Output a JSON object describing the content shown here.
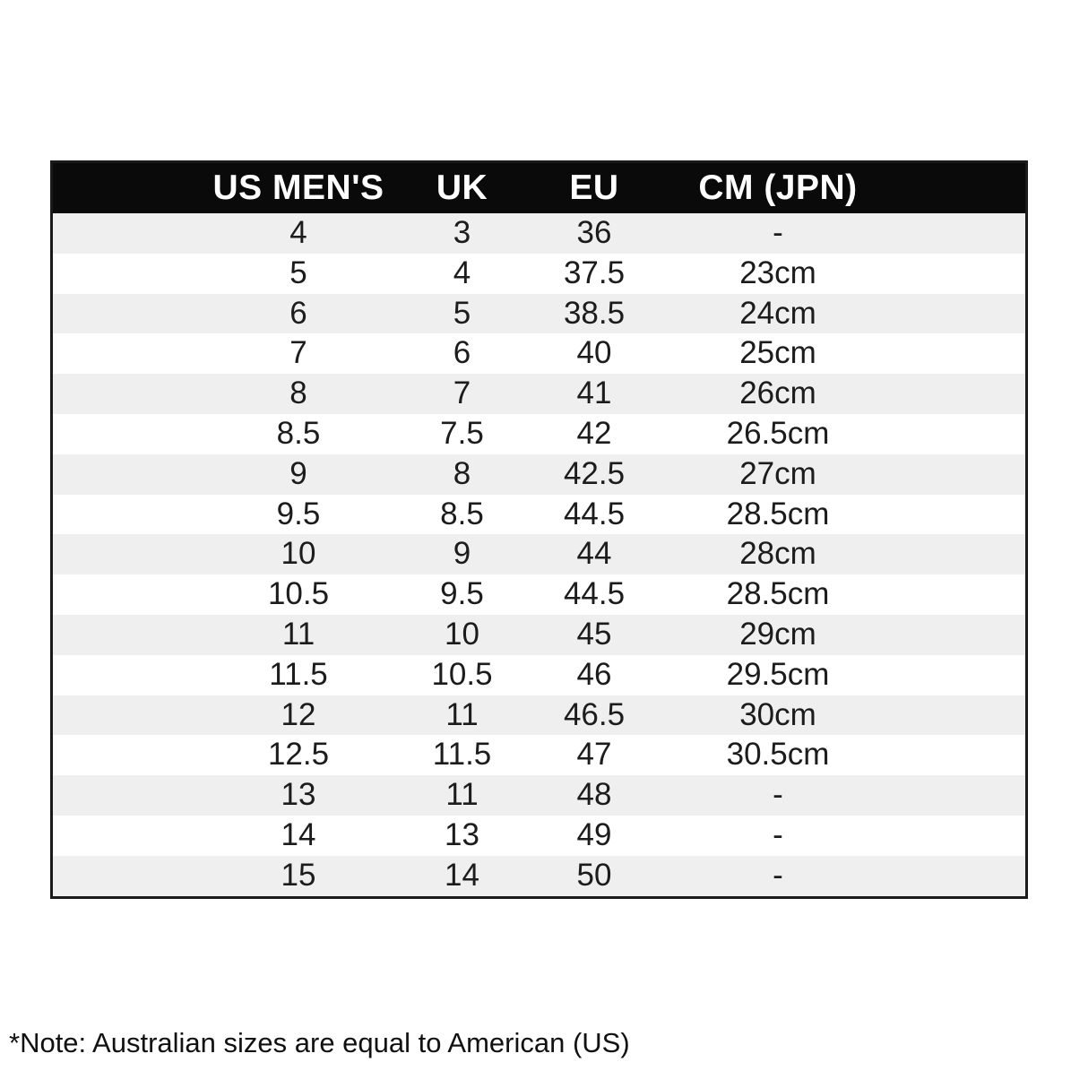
{
  "chart_data": {
    "type": "table",
    "columns": [
      "US MEN'S",
      "UK",
      "EU",
      "CM (JPN)"
    ],
    "rows": [
      [
        "4",
        "3",
        "36",
        "-"
      ],
      [
        "5",
        "4",
        "37.5",
        "23cm"
      ],
      [
        "6",
        "5",
        "38.5",
        "24cm"
      ],
      [
        "7",
        "6",
        "40",
        "25cm"
      ],
      [
        "8",
        "7",
        "41",
        "26cm"
      ],
      [
        "8.5",
        "7.5",
        "42",
        "26.5cm"
      ],
      [
        "9",
        "8",
        "42.5",
        "27cm"
      ],
      [
        "9.5",
        "8.5",
        "44.5",
        "28.5cm"
      ],
      [
        "10",
        "9",
        "44",
        "28cm"
      ],
      [
        "10.5",
        "9.5",
        "44.5",
        "28.5cm"
      ],
      [
        "11",
        "10",
        "45",
        "29cm"
      ],
      [
        "11.5",
        "10.5",
        "46",
        "29.5cm"
      ],
      [
        "12",
        "11",
        "46.5",
        "30cm"
      ],
      [
        "12.5",
        "11.5",
        "47",
        "30.5cm"
      ],
      [
        "13",
        "11",
        "48",
        "-"
      ],
      [
        "14",
        "13",
        "49",
        "-"
      ],
      [
        "15",
        "14",
        "50",
        "-"
      ]
    ],
    "layout": {
      "header_position": "top",
      "row_striping": "alternating, first data row shaded",
      "grid": "off",
      "cell_alignment": "center"
    }
  },
  "note": {
    "text": "*Note: Australian sizes are equal to American (US)"
  },
  "style": {
    "header_bg": "#0a0a0a",
    "header_fg": "#ffffff",
    "stripe_color": "#efefef",
    "row_white": "#ffffff",
    "border_color": "#1a1a1a",
    "text_color": "#1c1c1c",
    "page_bg": "#ffffff"
  }
}
